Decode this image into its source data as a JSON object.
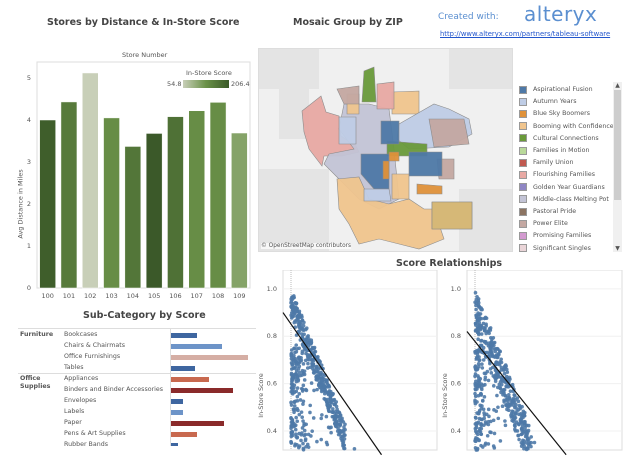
{
  "header": {
    "created_with": "Created with:",
    "brand": "alteryx",
    "link": "http://www.alteryx.com/partners/tableau-software"
  },
  "bar_chart_title": "Stores by Distance & In-Store Score",
  "map_title": "Mosaic Group by ZIP",
  "map_attribution": "© OpenStreetMap contributors",
  "subcategory_title": "Sub-Category by Score",
  "scatter_title": "Score Relationships",
  "legend": {
    "items": [
      {
        "label": "Aspirational Fusion",
        "color": "#4e79a7"
      },
      {
        "label": "Autumn Years",
        "color": "#bfcde6"
      },
      {
        "label": "Blue Sky Boomers",
        "color": "#e0923a"
      },
      {
        "label": "Booming with Confidence",
        "color": "#f0c58e"
      },
      {
        "label": "Cultural Connections",
        "color": "#6a9a3a"
      },
      {
        "label": "Families in Motion",
        "color": "#b9d99a"
      },
      {
        "label": "Family Union",
        "color": "#c05a50"
      },
      {
        "label": "Flourishing Families",
        "color": "#e8a9a4"
      },
      {
        "label": "Golden Year Guardians",
        "color": "#8f86c4"
      },
      {
        "label": "Middle-class Melting Pot",
        "color": "#c3c4d6"
      },
      {
        "label": "Pastoral Pride",
        "color": "#8c7462"
      },
      {
        "label": "Power Elite",
        "color": "#c4a8a2"
      },
      {
        "label": "Promising Families",
        "color": "#d39ad0"
      },
      {
        "label": "Significant Singles",
        "color": "#ead5d8"
      }
    ]
  },
  "chart_data": [
    {
      "type": "bar",
      "title": "Stores by Distance & In-Store Score",
      "xlabel": "Store Number",
      "ylabel": "Avg Distance in Miles",
      "categories": [
        "100",
        "101",
        "102",
        "103",
        "104",
        "105",
        "106",
        "107",
        "108",
        "109"
      ],
      "values": [
        4.0,
        4.43,
        5.12,
        4.05,
        3.37,
        3.68,
        4.08,
        4.22,
        4.42,
        3.69
      ],
      "color_values": [
        200,
        170,
        55,
        150,
        175,
        205,
        180,
        150,
        150,
        120
      ],
      "ylim": [
        0,
        5.3
      ],
      "yticks": [
        "0",
        "1",
        "2",
        "3",
        "4",
        "5"
      ],
      "color_legend": {
        "title": "In-Store Score",
        "min": "54.8",
        "max": "206.4"
      }
    },
    {
      "type": "bar",
      "title": "Sub-Category by Score",
      "groups": [
        {
          "name": "Furniture",
          "rows": [
            {
              "label": "Bookcases",
              "value": 26,
              "color": "#3e66a0"
            },
            {
              "label": "Chairs & Chairmats",
              "value": 51,
              "color": "#6d94c8"
            },
            {
              "label": "Office Furnishings",
              "value": 77,
              "color": "#d5aea4"
            },
            {
              "label": "Tables",
              "value": 24,
              "color": "#3e66a0"
            }
          ]
        },
        {
          "name": "Office Supplies",
          "rows": [
            {
              "label": "Appliances",
              "value": 38,
              "color": "#c8694f"
            },
            {
              "label": "Binders and Binder Accessories",
              "value": 62,
              "color": "#8a2a2a"
            },
            {
              "label": "Envelopes",
              "value": 12,
              "color": "#3e66a0"
            },
            {
              "label": "Labels",
              "value": 12,
              "color": "#6d94c8"
            },
            {
              "label": "Paper",
              "value": 53,
              "color": "#8a2a2a"
            },
            {
              "label": "Pens & Art Supplies",
              "value": 26,
              "color": "#c8694f"
            },
            {
              "label": "Rubber Bands",
              "value": 7,
              "color": "#3e66a0"
            }
          ]
        }
      ]
    },
    {
      "type": "scatter",
      "title": "Score Relationships",
      "panels": [
        {
          "ylabel": "In-Store Score",
          "yticks": [
            "1.0",
            "0.8",
            "0.6",
            "0.4"
          ],
          "trend": [
            [
              0,
              0.9
            ],
            [
              1,
              0.3
            ]
          ]
        },
        {
          "ylabel": "In-Store Score",
          "yticks": [
            "1.0",
            "0.8",
            "0.6",
            "0.4"
          ],
          "trend": [
            [
              0,
              0.82
            ],
            [
              1,
              0.3
            ]
          ]
        }
      ],
      "ylim": [
        0.32,
        1.05
      ],
      "color": "#4e79a7"
    }
  ]
}
